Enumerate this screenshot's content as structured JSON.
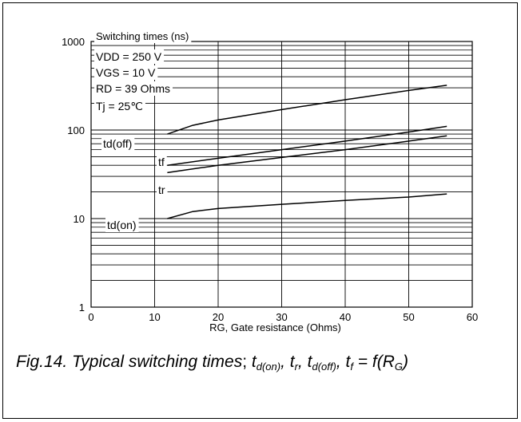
{
  "chart_data": {
    "type": "line",
    "title": "Switching times (ns)",
    "xlabel": "RG, Gate resistance (Ohms)",
    "ylabel": "",
    "xlim": [
      0,
      60
    ],
    "ylim": [
      1,
      1000
    ],
    "yscale": "log",
    "x_ticks": [
      "0",
      "10",
      "20",
      "30",
      "40",
      "50",
      "60"
    ],
    "y_ticks": [
      "1",
      "10",
      "100",
      "1000"
    ],
    "conditions": [
      "VDD = 250 V",
      "VGS = 10 V",
      "RD = 39 Ohms",
      "Tj = 25℃"
    ],
    "grid": true,
    "series": [
      {
        "name": "td(off)",
        "x": [
          12,
          16,
          20,
          30,
          40,
          50,
          56
        ],
        "y": [
          90,
          113,
          130,
          170,
          220,
          280,
          320
        ]
      },
      {
        "name": "tf",
        "x": [
          12,
          20,
          30,
          40,
          50,
          56
        ],
        "y": [
          40,
          48,
          60,
          75,
          95,
          110
        ]
      },
      {
        "name": "tr",
        "x": [
          12,
          20,
          30,
          40,
          50,
          56
        ],
        "y": [
          33,
          40,
          49,
          60,
          75,
          86
        ]
      },
      {
        "name": "td(on)",
        "x": [
          12,
          16,
          20,
          30,
          40,
          50,
          56
        ],
        "y": [
          10,
          12,
          13,
          14.5,
          16,
          17.5,
          19
        ]
      }
    ]
  },
  "caption": {
    "prefix": "Fig.14.  Typical switching times",
    "sep": ";",
    "t1": "t",
    "t1_sub": "d(on)",
    "comma1": ", ",
    "t2": "t",
    "t2_sub": "r",
    "comma2": ", ",
    "t3": "t",
    "t3_sub": "d(off)",
    "comma3": ", ",
    "t4": "t",
    "t4_sub": "f",
    "eq": " = f(R",
    "r_sub": "G",
    "close": ")"
  }
}
